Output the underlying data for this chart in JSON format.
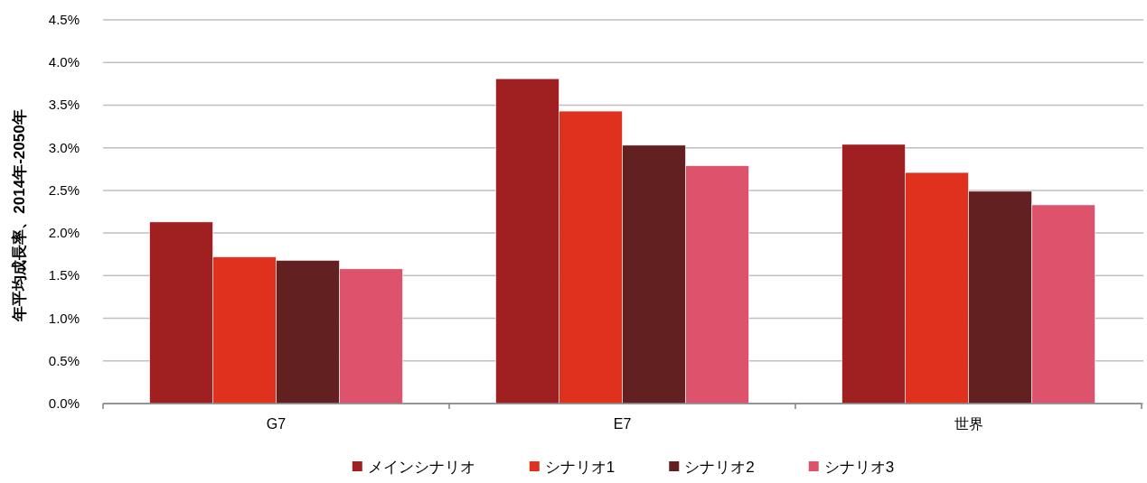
{
  "chart_data": {
    "type": "bar",
    "ylabel": "年平均成長率、2014年-2050年",
    "categories": [
      "G7",
      "E7",
      "世界"
    ],
    "series": [
      {
        "name": "メインシナリオ",
        "color": "#a01f21",
        "values": [
          2.13,
          3.81,
          3.04
        ]
      },
      {
        "name": "シナリオ1",
        "color": "#e0311f",
        "values": [
          1.72,
          3.43,
          2.71
        ]
      },
      {
        "name": "シナリオ2",
        "color": "#622020",
        "values": [
          1.68,
          3.03,
          2.49
        ]
      },
      {
        "name": "シナリオ3",
        "color": "#dc536b",
        "values": [
          1.58,
          2.79,
          2.33
        ]
      }
    ],
    "ylim": [
      0,
      4.5
    ],
    "yticks": [
      {
        "value": 0,
        "label": "0.0%"
      },
      {
        "value": 0.5,
        "label": "0.5%"
      },
      {
        "value": 1,
        "label": "1.0%"
      },
      {
        "value": 1.5,
        "label": "1.5%"
      },
      {
        "value": 2,
        "label": "2.0%"
      },
      {
        "value": 2.5,
        "label": "2.5%"
      },
      {
        "value": 3,
        "label": "3.0%"
      },
      {
        "value": 3.5,
        "label": "3.5%"
      },
      {
        "value": 4,
        "label": "4.0%"
      },
      {
        "value": 4.5,
        "label": "4.5%"
      }
    ],
    "grid": "y",
    "legend": "bottom"
  }
}
